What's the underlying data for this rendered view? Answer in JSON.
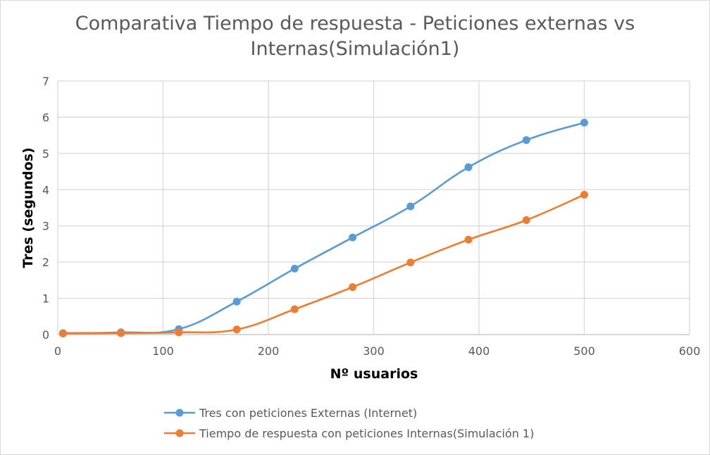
{
  "chart_data": {
    "type": "line",
    "title_lines": [
      "Comparativa Tiempo de respuesta - Peticiones externas vs",
      "Internas(Simulación1)"
    ],
    "xlabel": "Nº usuarios",
    "ylabel": "Tres (segundos)",
    "xlim": [
      0,
      600
    ],
    "ylim": [
      0,
      7
    ],
    "xticks": [
      0,
      100,
      200,
      300,
      400,
      500,
      600
    ],
    "yticks": [
      0,
      1,
      2,
      3,
      4,
      5,
      6,
      7
    ],
    "grid": true,
    "legend_position": "bottom",
    "x": [
      5,
      60,
      115,
      170,
      225,
      280,
      335,
      390,
      445,
      500
    ],
    "series": [
      {
        "name": "Tres con peticiones Externas (Internet)",
        "color": "#5b9bd5",
        "values": [
          0.04,
          0.06,
          0.15,
          0.91,
          1.82,
          2.68,
          3.54,
          4.62,
          5.37,
          5.85
        ]
      },
      {
        "name": "Tiempo de respuesta con peticiones Internas(Simulación 1)",
        "color": "#ed7d31",
        "values": [
          0.03,
          0.04,
          0.06,
          0.14,
          0.7,
          1.31,
          1.99,
          2.62,
          3.16,
          3.86
        ]
      }
    ]
  }
}
